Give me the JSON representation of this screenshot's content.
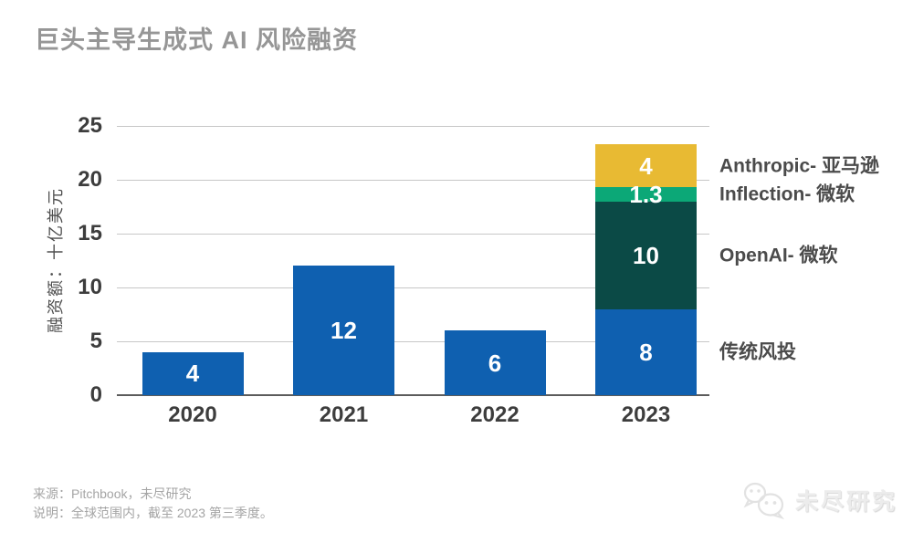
{
  "header": {
    "title": "巨头主导生成式 AI 风险融资"
  },
  "chart_data": {
    "type": "bar",
    "stacked": true,
    "title": "巨头主导生成式 AI 风险融资",
    "categories": [
      "2020",
      "2021",
      "2022",
      "2023"
    ],
    "series": [
      {
        "name": "传统风投",
        "color": "#0f60b0",
        "values": [
          4,
          12,
          6,
          8
        ]
      },
      {
        "name": "OpenAI- 微软",
        "color": "#0b4a46",
        "values": [
          0,
          0,
          0,
          10
        ]
      },
      {
        "name": "Inflection- 微软",
        "color": "#0ca877",
        "values": [
          0,
          0,
          0,
          1.3
        ]
      },
      {
        "name": "Anthropic- 亚马逊",
        "color": "#e8ba33",
        "values": [
          0,
          0,
          0,
          4
        ]
      }
    ],
    "bar_value_labels": [
      [
        "4"
      ],
      [
        "12"
      ],
      [
        "6"
      ],
      [
        "8",
        "10",
        "1.3",
        "4"
      ]
    ],
    "xlabel": "",
    "ylabel": "融资额：十亿美元",
    "ylim": [
      0,
      25
    ],
    "yticks": [
      0,
      5,
      10,
      15,
      20,
      25
    ],
    "grid": true,
    "legend_position": "right-of-2023-segments"
  },
  "colors": {
    "bar_blue": "#0f60b0",
    "bar_teal": "#0b4a46",
    "bar_green": "#0ca877",
    "bar_yellow": "#e8ba33",
    "grid_line": "#c7c7c7",
    "axis_line": "#5c5c5c",
    "title_gray": "#969696",
    "label_dark": "#3d3d3d",
    "value_text": "#ffffff"
  },
  "footer": {
    "source": "来源：Pitchbook，未尽研究",
    "note": "说明：全球范围内，截至 2023 第三季度。"
  },
  "watermark": {
    "icon": "wechat-icon",
    "text": "未尽研究"
  }
}
